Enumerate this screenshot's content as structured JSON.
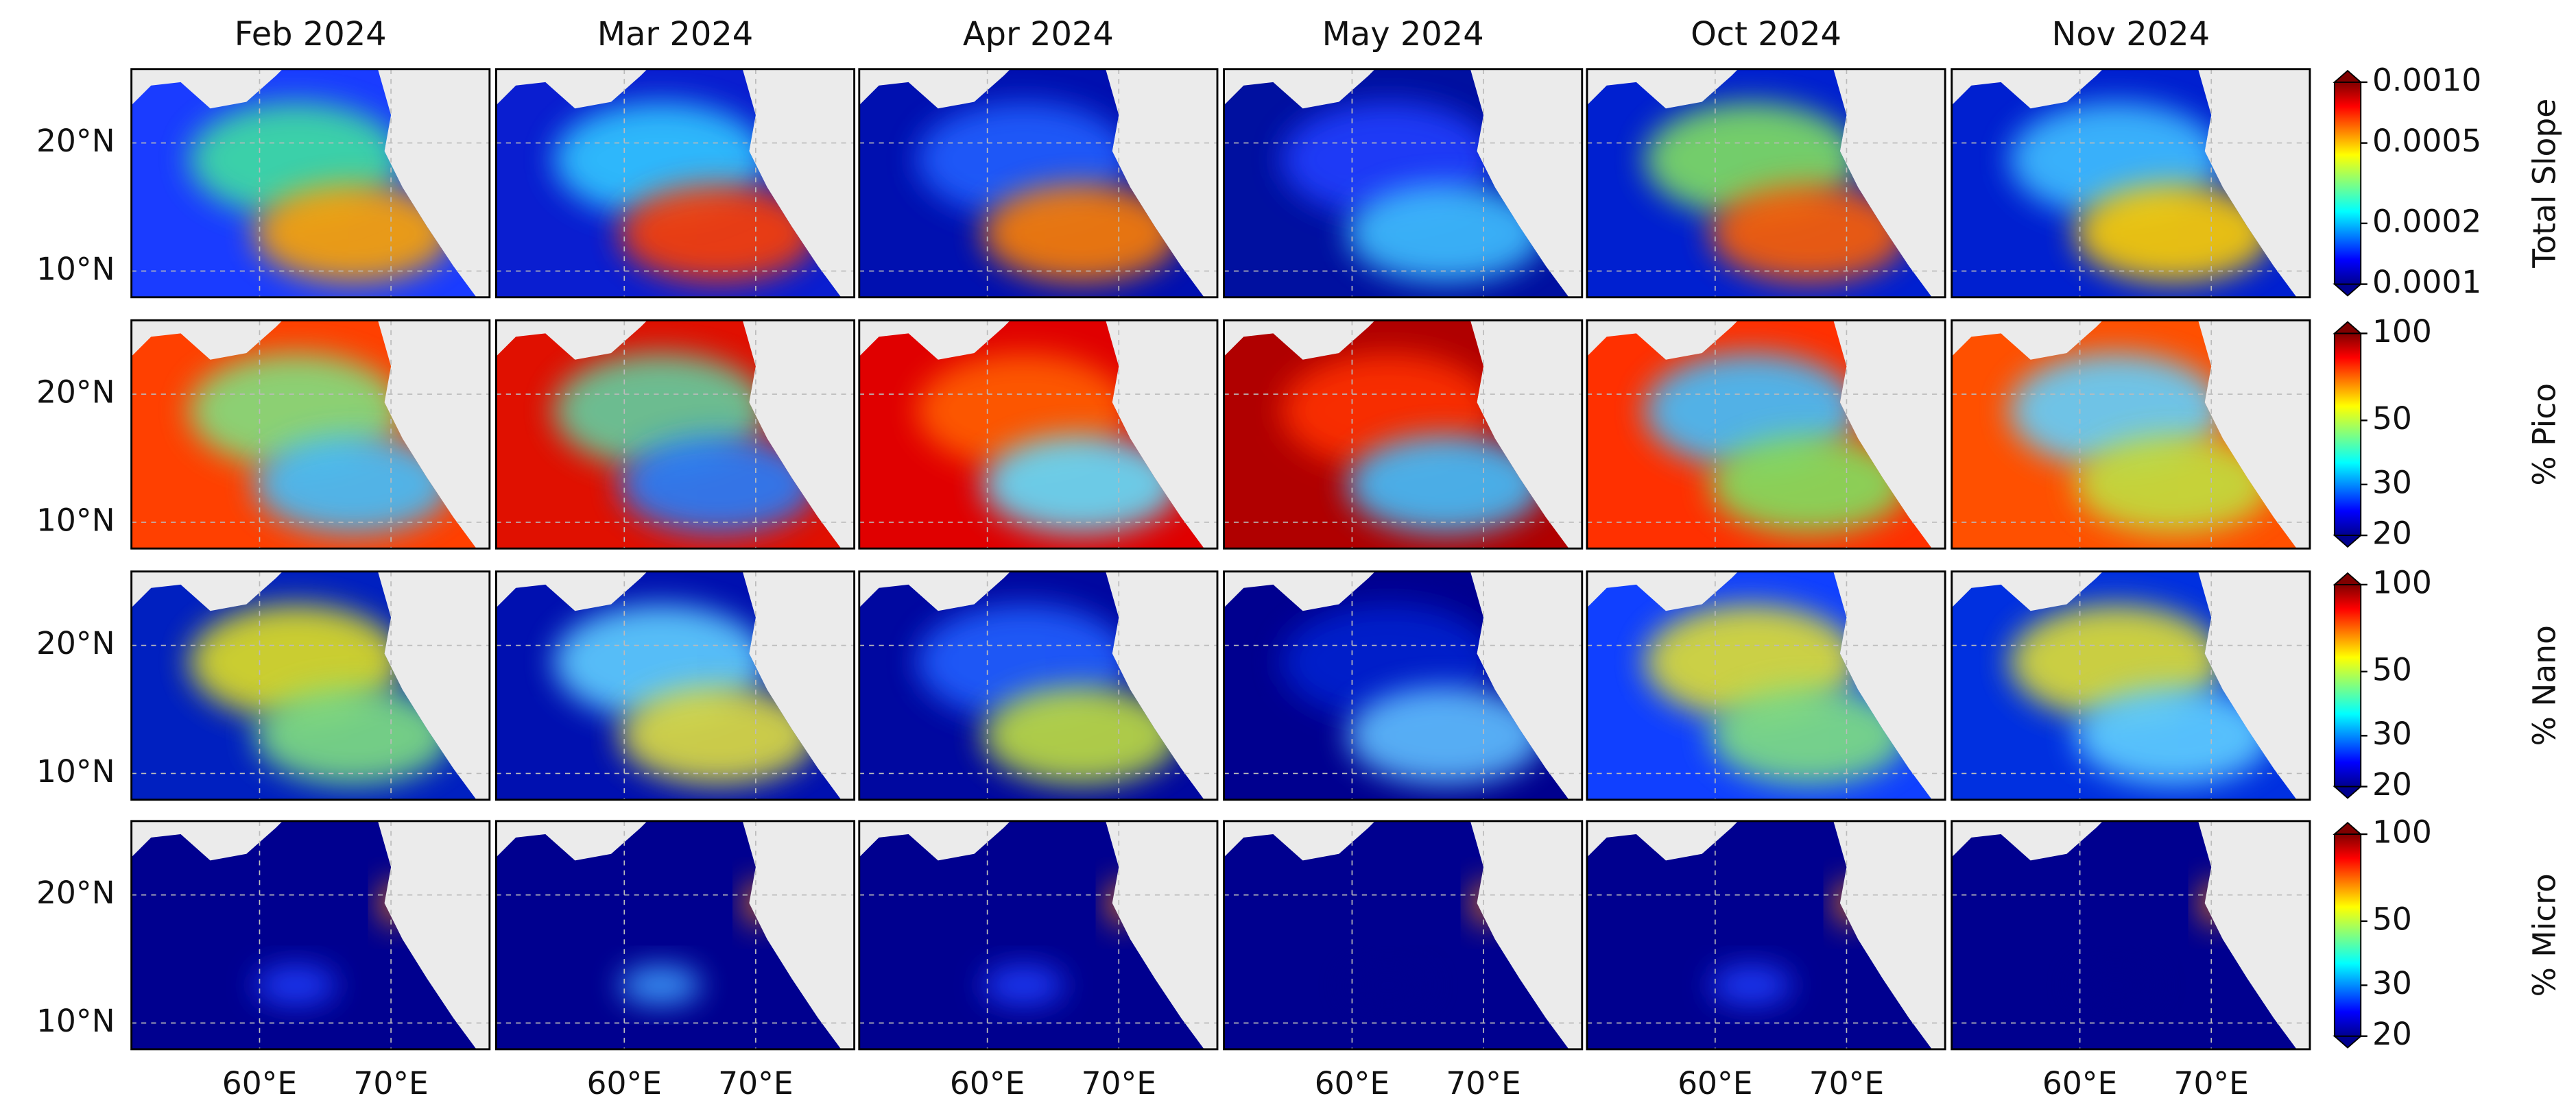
{
  "columns": [
    "Feb 2024",
    "Mar 2024",
    "Apr 2024",
    "May 2024",
    "Oct 2024",
    "Nov 2024"
  ],
  "rows": [
    {
      "label": "Total Slope",
      "ticks": [
        "0.0010",
        "0.0005",
        "0.0002",
        "0.0001"
      ]
    },
    {
      "label": "% Pico",
      "ticks": [
        "100",
        "50",
        "30",
        "20"
      ]
    },
    {
      "label": "% Nano",
      "ticks": [
        "100",
        "50",
        "30",
        "20"
      ]
    },
    {
      "label": "% Micro",
      "ticks": [
        "100",
        "50",
        "30",
        "20"
      ]
    }
  ],
  "lat_ticks": [
    "20°N",
    "10°N"
  ],
  "lon_ticks": [
    "60°E",
    "70°E"
  ]
}
